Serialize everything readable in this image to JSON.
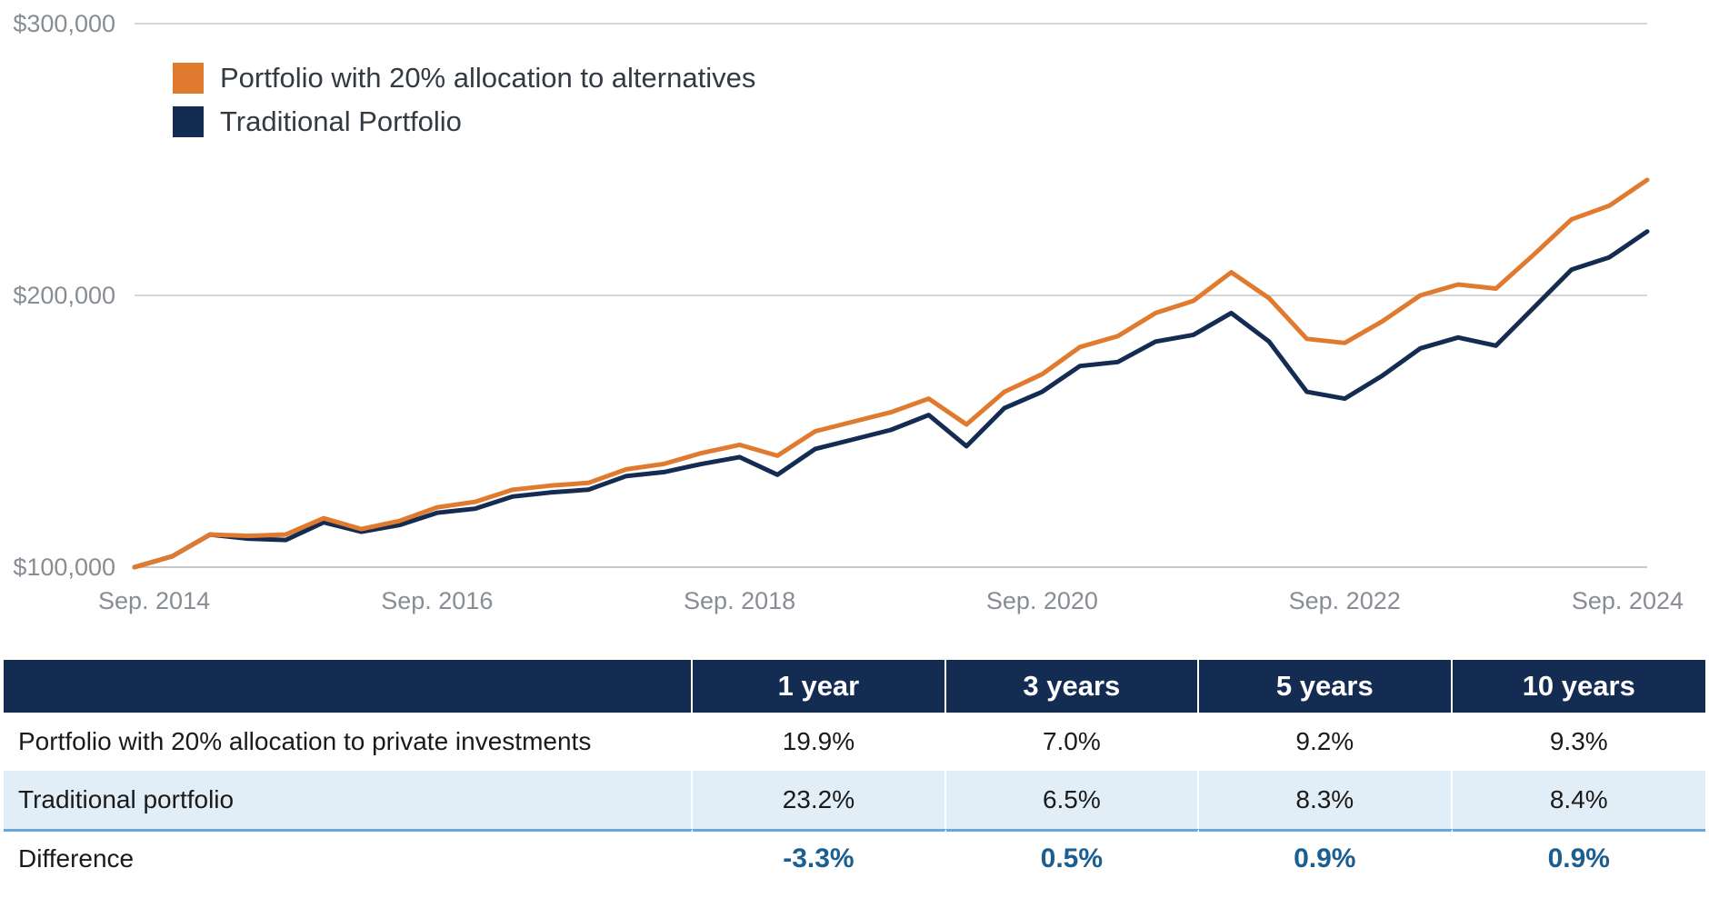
{
  "colors": {
    "alternatives": "#e07a2e",
    "traditional": "#152c52",
    "header_bg": "#152c52",
    "alt_row_bg": "#e1eef8",
    "difference_text": "#1a5e92",
    "grid": "#c8c8c8",
    "tick_text": "#888d93"
  },
  "chart_data": {
    "type": "line",
    "title": "",
    "xlabel": "",
    "ylabel": "",
    "x_tick_labels": [
      "Sep. 2014",
      "Sep. 2016",
      "Sep. 2018",
      "Sep. 2020",
      "Sep. 2022",
      "Sep. 2024"
    ],
    "x_tick_years": [
      2014.75,
      2016.75,
      2018.75,
      2020.75,
      2022.75,
      2024.75
    ],
    "y_tick_labels": [
      "$300,000",
      "$200,000",
      "$100,000"
    ],
    "y_tick_values": [
      300000,
      200000,
      100000
    ],
    "ylim": [
      100000,
      300000
    ],
    "xlim": [
      2014.75,
      2024.75
    ],
    "grid": true,
    "legend_position": "top-left",
    "x": [
      2014.75,
      2015.0,
      2015.25,
      2015.5,
      2015.75,
      2016.0,
      2016.25,
      2016.5,
      2016.75,
      2017.0,
      2017.25,
      2017.5,
      2017.75,
      2018.0,
      2018.25,
      2018.5,
      2018.75,
      2019.0,
      2019.25,
      2019.5,
      2019.75,
      2020.0,
      2020.25,
      2020.5,
      2020.75,
      2021.0,
      2021.25,
      2021.5,
      2021.75,
      2022.0,
      2022.25,
      2022.5,
      2022.75,
      2023.0,
      2023.25,
      2023.5,
      2023.75,
      2024.0,
      2024.25,
      2024.5,
      2024.75
    ],
    "series": [
      {
        "name": "Portfolio with 20% allocation to alternatives",
        "color_key": "alternatives",
        "values": [
          100000,
          104000,
          112000,
          111500,
          112000,
          118000,
          114000,
          117000,
          122000,
          124000,
          128500,
          130000,
          131000,
          136000,
          138000,
          142000,
          145000,
          141000,
          150000,
          153500,
          157000,
          162000,
          152500,
          164500,
          171000,
          181000,
          185000,
          193500,
          198000,
          208500,
          199000,
          184000,
          182500,
          190500,
          200000,
          204000,
          202500,
          215000,
          228000,
          233000,
          242500
        ]
      },
      {
        "name": "Traditional Portfolio",
        "color_key": "traditional",
        "values": [
          100000,
          104000,
          112000,
          110500,
          110000,
          116500,
          113000,
          115500,
          120000,
          121500,
          126000,
          127500,
          128500,
          133500,
          135000,
          138000,
          140500,
          134000,
          143500,
          147000,
          150500,
          156000,
          144500,
          158500,
          164500,
          174000,
          175500,
          183000,
          185500,
          193500,
          183000,
          164500,
          162000,
          170500,
          180500,
          184500,
          181500,
          195500,
          209500,
          214000,
          223500
        ]
      }
    ]
  },
  "table": {
    "headers": [
      "",
      "1 year",
      "3 years",
      "5 years",
      "10 years"
    ],
    "rows": [
      {
        "label": "Portfolio with 20% allocation to private investments",
        "values": [
          "19.9%",
          "7.0%",
          "9.2%",
          "9.3%"
        ]
      },
      {
        "label": "Traditional portfolio",
        "values": [
          "23.2%",
          "6.5%",
          "8.3%",
          "8.4%"
        ]
      },
      {
        "label": "Difference",
        "values": [
          "-3.3%",
          "0.5%",
          "0.9%",
          "0.9%"
        ]
      }
    ]
  }
}
